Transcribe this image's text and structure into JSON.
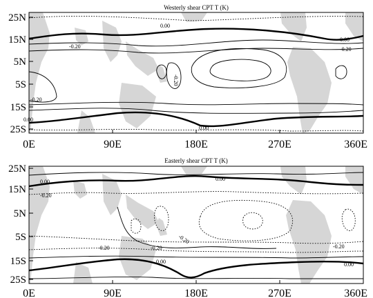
{
  "panels": [
    {
      "title": "Westerly shear CPT T (K)",
      "contour_labels": [
        "0.00",
        "-0.20",
        "0.00",
        "-0.20",
        "-0.20",
        "-0.20",
        "0.00",
        "0.00"
      ],
      "lat_labels": [
        "25N",
        "15N",
        "5N",
        "5S",
        "15S",
        "25S"
      ],
      "lon_labels": [
        "0E",
        "90E",
        "180E",
        "270E",
        "360E"
      ]
    },
    {
      "title": "Easterly shear CPT T (K)",
      "contour_labels": [
        "0.00",
        "0.00",
        "-0.20",
        "-0.20",
        "-0.20",
        "-0.20",
        "-0.20",
        "0.00",
        "0.00"
      ],
      "lat_labels": [
        "25N",
        "15N",
        "5N",
        "5S",
        "15S",
        "25S"
      ],
      "lon_labels": [
        "0E",
        "90E",
        "180E",
        "270E",
        "360E"
      ]
    }
  ],
  "map_style": {
    "land_color": "#d6d6d6",
    "contour_color": "#000000",
    "zero_contour": "thick-solid",
    "positive_contours": "thin-solid",
    "negative_contours": "dotted"
  }
}
